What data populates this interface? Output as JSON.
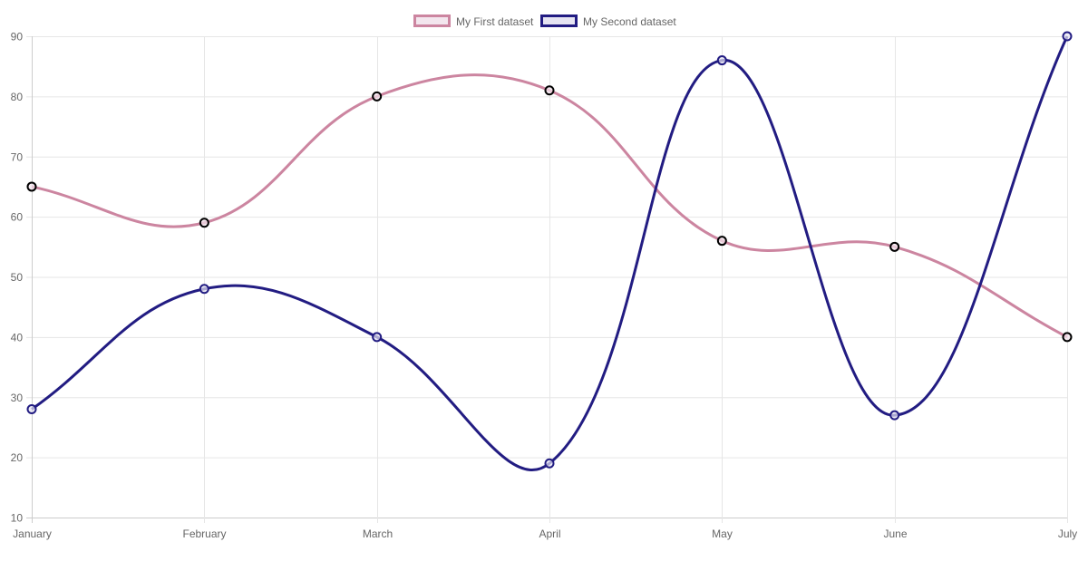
{
  "chart_data": {
    "type": "line",
    "title": "",
    "xlabel": "",
    "ylabel": "",
    "categories": [
      "January",
      "February",
      "March",
      "April",
      "May",
      "June",
      "July"
    ],
    "ylim": [
      10,
      90
    ],
    "yticks": [
      10,
      20,
      30,
      40,
      50,
      60,
      70,
      80,
      90
    ],
    "grid": true,
    "legend_position": "top",
    "curve": "monotone-smooth",
    "series": [
      {
        "name": "My First dataset",
        "values": [
          65,
          59,
          80,
          81,
          56,
          55,
          40
        ],
        "line_color": "#cc85a0",
        "fill_color": "#f3e6ee",
        "point_border": "#000000"
      },
      {
        "name": "My Second dataset",
        "values": [
          28,
          48,
          40,
          19,
          86,
          27,
          90
        ],
        "line_color": "#221c82",
        "fill_color": "#e6e4f2",
        "point_border": "#221c82"
      }
    ]
  },
  "legend": {
    "items": [
      {
        "label": "My First dataset"
      },
      {
        "label": "My Second dataset"
      }
    ]
  }
}
